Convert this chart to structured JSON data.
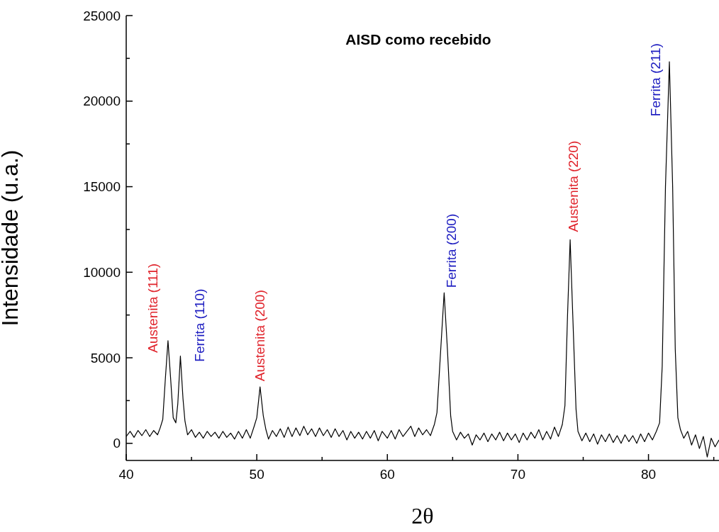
{
  "chart_data": {
    "type": "line",
    "title": "AISD como recebido",
    "xlabel": "2θ",
    "ylabel": "Intensidade (u.a.)",
    "xlim": [
      40,
      85.4
    ],
    "ylim": [
      -1000,
      25000
    ],
    "xticks": [
      40,
      {
        "value": 45,
        "label": null
      },
      50,
      {
        "value": 55,
        "label": null
      },
      60,
      {
        "value": 65,
        "label": null
      },
      70,
      {
        "value": 75,
        "label": null
      },
      80,
      {
        "value": 85,
        "label": null
      }
    ],
    "yticks": [
      0,
      {
        "value": 2500,
        "label": null
      },
      5000,
      {
        "value": 7500,
        "label": null
      },
      10000,
      {
        "value": 12500,
        "label": null
      },
      15000,
      {
        "value": 17500,
        "label": null
      },
      20000,
      {
        "value": 22500,
        "label": null
      },
      25000
    ],
    "marker": "none",
    "line_style": "solid",
    "series": [
      {
        "color": "#000000",
        "x": [
          40.0,
          40.3,
          40.6,
          40.9,
          41.2,
          41.5,
          41.8,
          42.1,
          42.4,
          42.6,
          42.8,
          43.0,
          43.2,
          43.4,
          43.6,
          43.8,
          43.95,
          44.15,
          44.35,
          44.5,
          44.7,
          45.0,
          45.3,
          45.6,
          45.9,
          46.2,
          46.5,
          46.8,
          47.1,
          47.4,
          47.7,
          48.0,
          48.3,
          48.6,
          48.9,
          49.2,
          49.5,
          49.8,
          50.0,
          50.25,
          50.5,
          50.7,
          50.9,
          51.2,
          51.5,
          51.8,
          52.1,
          52.4,
          52.7,
          53.0,
          53.3,
          53.6,
          53.9,
          54.2,
          54.5,
          54.8,
          55.1,
          55.4,
          55.7,
          56.0,
          56.3,
          56.6,
          56.9,
          57.2,
          57.5,
          57.8,
          58.1,
          58.4,
          58.7,
          59.0,
          59.3,
          59.6,
          60.0,
          60.3,
          60.6,
          60.9,
          61.2,
          61.5,
          61.8,
          62.1,
          62.4,
          62.7,
          63.0,
          63.3,
          63.6,
          63.8,
          64.05,
          64.35,
          64.6,
          64.85,
          65.0,
          65.3,
          65.6,
          65.9,
          66.2,
          66.5,
          66.8,
          67.1,
          67.4,
          67.7,
          68.0,
          68.3,
          68.6,
          68.9,
          69.2,
          69.5,
          69.8,
          70.1,
          70.4,
          70.7,
          71.0,
          71.3,
          71.6,
          71.9,
          72.2,
          72.5,
          72.8,
          73.1,
          73.4,
          73.6,
          73.8,
          74.0,
          74.2,
          74.45,
          74.6,
          74.9,
          75.2,
          75.5,
          75.8,
          76.1,
          76.4,
          76.7,
          77.0,
          77.3,
          77.6,
          77.9,
          78.2,
          78.5,
          78.8,
          79.1,
          79.4,
          79.7,
          80.0,
          80.3,
          80.6,
          80.85,
          81.05,
          81.3,
          81.6,
          81.85,
          82.05,
          82.25,
          82.45,
          82.7,
          83.0,
          83.3,
          83.6,
          83.9,
          84.2,
          84.5,
          84.8,
          85.1,
          85.4
        ],
        "values": [
          400,
          700,
          350,
          750,
          450,
          800,
          400,
          750,
          500,
          900,
          1400,
          3800,
          6000,
          3800,
          1500,
          1200,
          2300,
          5100,
          2600,
          1300,
          500,
          800,
          350,
          650,
          300,
          700,
          400,
          650,
          300,
          700,
          350,
          600,
          250,
          700,
          300,
          800,
          300,
          1000,
          1500,
          3300,
          1600,
          800,
          250,
          750,
          400,
          850,
          350,
          950,
          400,
          900,
          450,
          1000,
          500,
          850,
          400,
          900,
          450,
          800,
          350,
          850,
          400,
          750,
          200,
          700,
          300,
          650,
          250,
          700,
          300,
          750,
          150,
          700,
          300,
          750,
          250,
          800,
          400,
          700,
          1000,
          400,
          900,
          500,
          800,
          450,
          1100,
          1800,
          5000,
          8800,
          5500,
          1600,
          700,
          200,
          650,
          300,
          550,
          -100,
          500,
          200,
          600,
          100,
          550,
          200,
          650,
          150,
          600,
          200,
          550,
          50,
          600,
          200,
          650,
          300,
          800,
          200,
          700,
          250,
          950,
          400,
          1100,
          2200,
          7500,
          11900,
          7500,
          2000,
          700,
          150,
          600,
          100,
          550,
          -50,
          500,
          100,
          550,
          50,
          450,
          0,
          500,
          100,
          450,
          0,
          550,
          100,
          600,
          200,
          700,
          1200,
          4500,
          15000,
          22300,
          15000,
          5500,
          1500,
          800,
          300,
          700,
          -100,
          500,
          -300,
          400,
          -800,
          300,
          -200,
          200
        ]
      }
    ],
    "annotations": [
      {
        "text": "Austenita (111)",
        "x": 43.2,
        "y": 6000
      },
      {
        "text": "Ferrita (110)",
        "x": 44.15,
        "y": 5100
      },
      {
        "text": "Austenita (200)",
        "x": 50.25,
        "y": 3300
      },
      {
        "text": "Ferrita (200)",
        "x": 64.35,
        "y": 8800
      },
      {
        "text": "Austenita (220)",
        "x": 74.0,
        "y": 11900
      },
      {
        "text": "Ferrita (211)",
        "x": 81.6,
        "y": 22300
      }
    ]
  }
}
